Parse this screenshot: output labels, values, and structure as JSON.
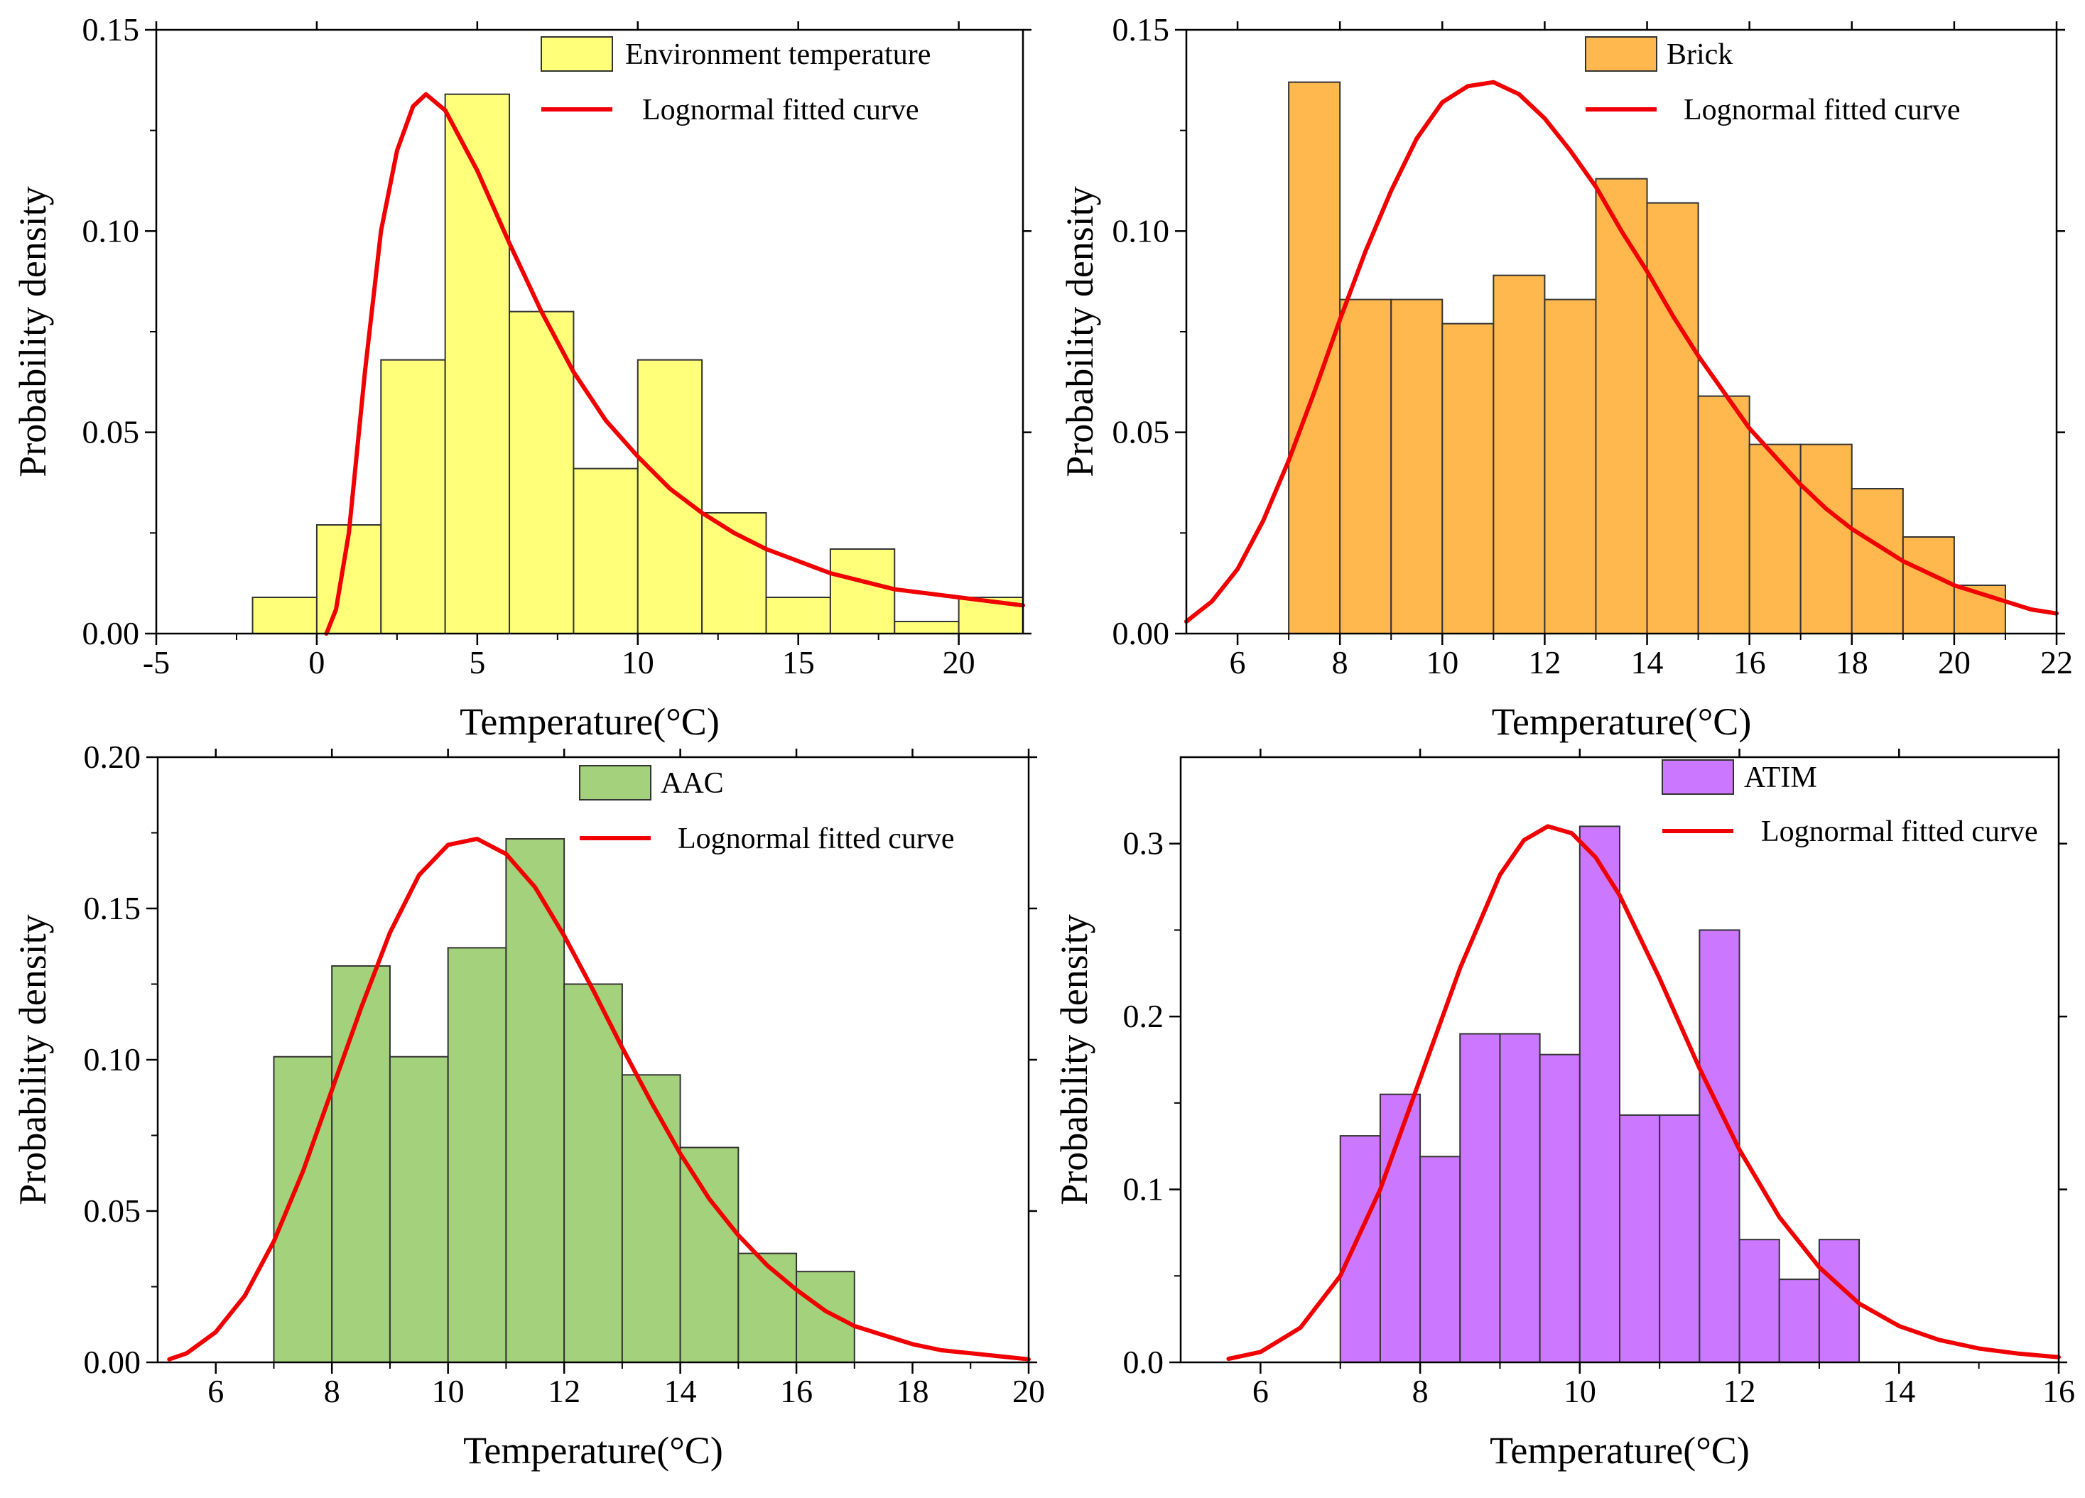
{
  "figure": {
    "description_free": true,
    "panels": 4
  },
  "chart_data": [
    {
      "type": "bar",
      "subtype": "histogram_with_fitted_curve",
      "xlabel": "Temperature(°C)",
      "ylabel": "Probability density",
      "xlim": [
        -5,
        22
      ],
      "ylim": [
        0,
        0.15
      ],
      "x_ticks": [
        -5,
        0,
        5,
        10,
        15,
        20
      ],
      "y_ticks": [
        0.0,
        0.05,
        0.1,
        0.15
      ],
      "y_tick_labels": [
        "0.00",
        "0.05",
        "0.10",
        "0.15"
      ],
      "legend": {
        "position": "top-right",
        "bar_label": "Environment temperature",
        "curve_label": "Lognormal fitted curve"
      },
      "colors": {
        "bar": "#FFFF7A",
        "curve": "#F00000"
      },
      "bins": [
        {
          "x0": -2,
          "x1": 0,
          "value": 0.009
        },
        {
          "x0": 0,
          "x1": 2,
          "value": 0.027
        },
        {
          "x0": 2,
          "x1": 4,
          "value": 0.068
        },
        {
          "x0": 4,
          "x1": 6,
          "value": 0.134
        },
        {
          "x0": 6,
          "x1": 8,
          "value": 0.08
        },
        {
          "x0": 8,
          "x1": 10,
          "value": 0.041
        },
        {
          "x0": 10,
          "x1": 12,
          "value": 0.068
        },
        {
          "x0": 12,
          "x1": 14,
          "value": 0.03
        },
        {
          "x0": 14,
          "x1": 16,
          "value": 0.009
        },
        {
          "x0": 16,
          "x1": 18,
          "value": 0.021
        },
        {
          "x0": 18,
          "x1": 20,
          "value": 0.003
        },
        {
          "x0": 20,
          "x1": 22,
          "value": 0.009
        }
      ],
      "curve": {
        "x": [
          0.3,
          0.6,
          1.0,
          1.5,
          2.0,
          2.5,
          3.0,
          3.4,
          4.0,
          5.0,
          6.0,
          7.0,
          8.0,
          9.0,
          10.0,
          11.0,
          12.0,
          13.0,
          14.0,
          15.0,
          16.0,
          17.0,
          18.0,
          19.0,
          20.0,
          21.0,
          22.0
        ],
        "y": [
          0.0,
          0.006,
          0.025,
          0.065,
          0.1,
          0.12,
          0.131,
          0.134,
          0.13,
          0.115,
          0.097,
          0.08,
          0.065,
          0.053,
          0.044,
          0.036,
          0.03,
          0.025,
          0.021,
          0.018,
          0.015,
          0.013,
          0.011,
          0.01,
          0.009,
          0.008,
          0.007
        ]
      }
    },
    {
      "type": "bar",
      "subtype": "histogram_with_fitted_curve",
      "xlabel": "Temperature(°C)",
      "ylabel": "Probability density",
      "xlim": [
        5,
        22
      ],
      "ylim": [
        0,
        0.15
      ],
      "x_ticks": [
        6,
        8,
        10,
        12,
        14,
        16,
        18,
        20,
        22
      ],
      "y_ticks": [
        0.0,
        0.05,
        0.1,
        0.15
      ],
      "y_tick_labels": [
        "0.00",
        "0.05",
        "0.10",
        "0.15"
      ],
      "legend": {
        "position": "top-right",
        "bar_label": "Brick",
        "curve_label": "Lognormal fitted curve"
      },
      "colors": {
        "bar": "#FFB84D",
        "curve": "#F00000"
      },
      "bins": [
        {
          "x0": 7,
          "x1": 8,
          "value": 0.137
        },
        {
          "x0": 8,
          "x1": 9,
          "value": 0.083
        },
        {
          "x0": 9,
          "x1": 10,
          "value": 0.083
        },
        {
          "x0": 10,
          "x1": 11,
          "value": 0.077
        },
        {
          "x0": 11,
          "x1": 12,
          "value": 0.089
        },
        {
          "x0": 12,
          "x1": 13,
          "value": 0.083
        },
        {
          "x0": 13,
          "x1": 14,
          "value": 0.113
        },
        {
          "x0": 14,
          "x1": 15,
          "value": 0.107
        },
        {
          "x0": 15,
          "x1": 16,
          "value": 0.059
        },
        {
          "x0": 16,
          "x1": 17,
          "value": 0.047
        },
        {
          "x0": 17,
          "x1": 18,
          "value": 0.047
        },
        {
          "x0": 18,
          "x1": 19,
          "value": 0.036
        },
        {
          "x0": 19,
          "x1": 20,
          "value": 0.024
        },
        {
          "x0": 20,
          "x1": 21,
          "value": 0.012
        }
      ],
      "curve": {
        "x": [
          5.0,
          5.5,
          6.0,
          6.5,
          7.0,
          7.5,
          8.0,
          8.5,
          9.0,
          9.5,
          10.0,
          10.5,
          11.0,
          11.5,
          12.0,
          12.5,
          13.0,
          13.5,
          14.0,
          14.5,
          15.0,
          15.5,
          16.0,
          16.5,
          17.0,
          17.5,
          18.0,
          18.5,
          19.0,
          19.5,
          20.0,
          20.5,
          21.0,
          21.5,
          22.0
        ],
        "y": [
          0.003,
          0.008,
          0.016,
          0.028,
          0.043,
          0.06,
          0.078,
          0.095,
          0.11,
          0.123,
          0.132,
          0.136,
          0.137,
          0.134,
          0.128,
          0.12,
          0.111,
          0.1,
          0.09,
          0.079,
          0.069,
          0.06,
          0.051,
          0.044,
          0.037,
          0.031,
          0.026,
          0.022,
          0.018,
          0.015,
          0.012,
          0.01,
          0.008,
          0.006,
          0.005
        ]
      }
    },
    {
      "type": "bar",
      "subtype": "histogram_with_fitted_curve",
      "xlabel": "Temperature(°C)",
      "ylabel": "Probability density",
      "xlim": [
        5,
        20
      ],
      "ylim": [
        0,
        0.2
      ],
      "x_ticks": [
        6,
        8,
        10,
        12,
        14,
        16,
        18,
        20
      ],
      "y_ticks": [
        0.0,
        0.05,
        0.1,
        0.15,
        0.2
      ],
      "y_tick_labels": [
        "0.00",
        "0.05",
        "0.10",
        "0.15",
        "0.20"
      ],
      "legend": {
        "position": "top-right",
        "bar_label": "AAC",
        "curve_label": "Lognormal fitted curve"
      },
      "colors": {
        "bar": "#A4D17B",
        "curve": "#F00000"
      },
      "bins": [
        {
          "x0": 7,
          "x1": 8,
          "value": 0.101
        },
        {
          "x0": 8,
          "x1": 9,
          "value": 0.131
        },
        {
          "x0": 9,
          "x1": 10,
          "value": 0.101
        },
        {
          "x0": 10,
          "x1": 11,
          "value": 0.137
        },
        {
          "x0": 11,
          "x1": 12,
          "value": 0.173
        },
        {
          "x0": 12,
          "x1": 13,
          "value": 0.125
        },
        {
          "x0": 13,
          "x1": 14,
          "value": 0.095
        },
        {
          "x0": 14,
          "x1": 15,
          "value": 0.071
        },
        {
          "x0": 15,
          "x1": 16,
          "value": 0.036
        },
        {
          "x0": 16,
          "x1": 17,
          "value": 0.03
        }
      ],
      "curve": {
        "x": [
          5.2,
          5.5,
          6.0,
          6.5,
          7.0,
          7.5,
          8.0,
          8.5,
          9.0,
          9.5,
          10.0,
          10.5,
          11.0,
          11.5,
          12.0,
          12.5,
          13.0,
          13.5,
          14.0,
          14.5,
          15.0,
          15.5,
          16.0,
          16.5,
          17.0,
          17.5,
          18.0,
          18.5,
          19.0,
          19.5,
          20.0
        ],
        "y": [
          0.001,
          0.003,
          0.01,
          0.022,
          0.04,
          0.063,
          0.09,
          0.117,
          0.142,
          0.161,
          0.171,
          0.173,
          0.168,
          0.157,
          0.141,
          0.123,
          0.104,
          0.086,
          0.069,
          0.054,
          0.042,
          0.032,
          0.024,
          0.017,
          0.012,
          0.009,
          0.006,
          0.004,
          0.003,
          0.002,
          0.001
        ]
      }
    },
    {
      "type": "bar",
      "subtype": "histogram_with_fitted_curve",
      "xlabel": "Temperature(°C)",
      "ylabel": "Probability density",
      "xlim": [
        5,
        16
      ],
      "ylim": [
        0,
        0.35
      ],
      "x_ticks": [
        6,
        8,
        10,
        12,
        14,
        16
      ],
      "y_ticks": [
        0.0,
        0.1,
        0.2,
        0.3
      ],
      "y_tick_labels": [
        "0.0",
        "0.1",
        "0.2",
        "0.3"
      ],
      "legend": {
        "position": "top-right",
        "bar_label": "ATIM",
        "curve_label": "Lognormal fitted curve"
      },
      "colors": {
        "bar": "#CC77FF",
        "curve": "#F00000"
      },
      "bins": [
        {
          "x0": 7.0,
          "x1": 7.5,
          "value": 0.131
        },
        {
          "x0": 7.5,
          "x1": 8.0,
          "value": 0.155
        },
        {
          "x0": 8.0,
          "x1": 8.5,
          "value": 0.119
        },
        {
          "x0": 8.5,
          "x1": 9.0,
          "value": 0.19
        },
        {
          "x0": 9.0,
          "x1": 9.5,
          "value": 0.19
        },
        {
          "x0": 9.5,
          "x1": 10.0,
          "value": 0.178
        },
        {
          "x0": 10.0,
          "x1": 10.5,
          "value": 0.31
        },
        {
          "x0": 10.5,
          "x1": 11.0,
          "value": 0.143
        },
        {
          "x0": 11.0,
          "x1": 11.5,
          "value": 0.143
        },
        {
          "x0": 11.5,
          "x1": 12.0,
          "value": 0.25
        },
        {
          "x0": 12.0,
          "x1": 12.5,
          "value": 0.071
        },
        {
          "x0": 12.5,
          "x1": 13.0,
          "value": 0.048
        },
        {
          "x0": 13.0,
          "x1": 13.5,
          "value": 0.071
        }
      ],
      "curve": {
        "x": [
          5.6,
          6.0,
          6.5,
          7.0,
          7.5,
          8.0,
          8.5,
          9.0,
          9.3,
          9.6,
          9.9,
          10.2,
          10.5,
          11.0,
          11.5,
          12.0,
          12.5,
          13.0,
          13.5,
          14.0,
          14.5,
          15.0,
          15.5,
          16.0
        ],
        "y": [
          0.002,
          0.006,
          0.02,
          0.05,
          0.1,
          0.164,
          0.228,
          0.282,
          0.302,
          0.31,
          0.306,
          0.292,
          0.27,
          0.222,
          0.17,
          0.123,
          0.084,
          0.055,
          0.034,
          0.021,
          0.013,
          0.008,
          0.005,
          0.003
        ]
      }
    }
  ]
}
